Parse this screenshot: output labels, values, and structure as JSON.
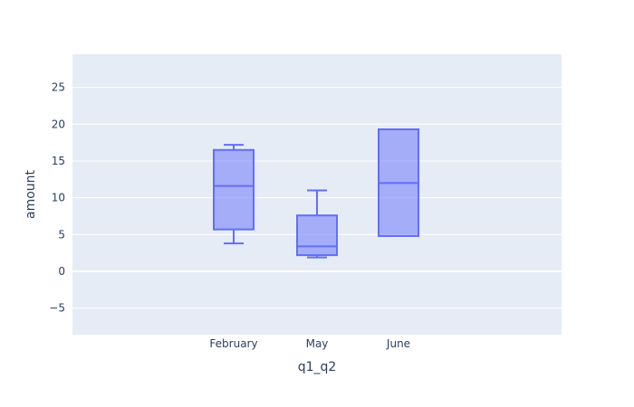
{
  "chart_data": {
    "type": "box",
    "xlabel": "q1_q2",
    "ylabel": "amount",
    "categories": [
      "February",
      "May",
      "June"
    ],
    "ylim": [
      -8.6,
      29.5
    ],
    "y_ticks": [
      -5,
      0,
      5,
      10,
      15,
      20,
      25
    ],
    "y_tick_labels": [
      "−5",
      "0",
      "5",
      "10",
      "15",
      "20",
      "25"
    ],
    "grid": true,
    "boxes": [
      {
        "category": "February",
        "min": 3.8,
        "q1": 5.7,
        "median": 11.6,
        "q3": 16.5,
        "max": 17.2
      },
      {
        "category": "May",
        "min": 1.9,
        "q1": 2.2,
        "median": 3.4,
        "q3": 7.6,
        "max": 11.0
      },
      {
        "category": "June",
        "min": 4.8,
        "q1": 4.8,
        "median": 12.0,
        "q3": 19.3,
        "max": 19.3
      }
    ],
    "colors": {
      "plot_bg": "#e5ecf6",
      "grid": "#ffffff",
      "box_line": "#636efa",
      "box_fill": "rgba(99,110,250,0.5)",
      "text": "#2a3f5f"
    }
  }
}
